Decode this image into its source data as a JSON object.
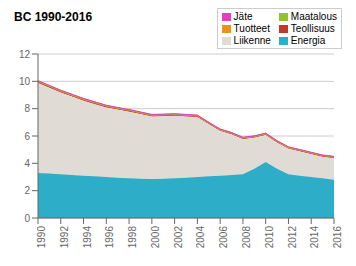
{
  "chart_data": {
    "type": "area",
    "title": "BC 1990-2016",
    "stacked": true,
    "x": [
      1990,
      1991,
      1992,
      1993,
      1994,
      1995,
      1996,
      1997,
      1998,
      1999,
      2000,
      2001,
      2002,
      2003,
      2004,
      2005,
      2006,
      2007,
      2008,
      2009,
      2010,
      2011,
      2012,
      2013,
      2014,
      2015,
      2016
    ],
    "xlim": [
      1990,
      2016
    ],
    "xticks": [
      1990,
      1992,
      1994,
      1996,
      1998,
      2000,
      2002,
      2004,
      2006,
      2008,
      2010,
      2012,
      2014,
      2016
    ],
    "ylim": [
      0,
      12
    ],
    "yticks": [
      0,
      2,
      4,
      6,
      8,
      10,
      12
    ],
    "grid": true,
    "legend": "upper right",
    "series": [
      {
        "name": "Energia",
        "color": "#2dadc8",
        "values": [
          3.3,
          3.25,
          3.2,
          3.15,
          3.1,
          3.05,
          3.0,
          2.95,
          2.9,
          2.88,
          2.85,
          2.87,
          2.9,
          2.95,
          3.0,
          3.05,
          3.1,
          3.15,
          3.2,
          3.6,
          4.1,
          3.6,
          3.2,
          3.1,
          3.0,
          2.9,
          2.8
        ]
      },
      {
        "name": "Liikenne",
        "color": "#e0dbd4",
        "values": [
          6.6,
          6.3,
          6.0,
          5.75,
          5.5,
          5.3,
          5.1,
          5.0,
          4.9,
          4.75,
          4.6,
          4.6,
          4.6,
          4.5,
          4.4,
          3.85,
          3.3,
          3.0,
          2.6,
          2.3,
          2.0,
          1.95,
          1.9,
          1.8,
          1.7,
          1.6,
          1.6
        ]
      },
      {
        "name": "Teollisuus",
        "color": "#c0392b",
        "values": [
          0.05,
          0.05,
          0.05,
          0.05,
          0.05,
          0.05,
          0.05,
          0.05,
          0.05,
          0.04,
          0.04,
          0.04,
          0.04,
          0.04,
          0.04,
          0.03,
          0.03,
          0.03,
          0.03,
          0.03,
          0.03,
          0.03,
          0.03,
          0.03,
          0.03,
          0.03,
          0.03
        ]
      },
      {
        "name": "Tuotteet",
        "color": "#e8941a",
        "values": [
          0.05,
          0.05,
          0.05,
          0.05,
          0.05,
          0.05,
          0.05,
          0.04,
          0.04,
          0.04,
          0.04,
          0.04,
          0.04,
          0.04,
          0.04,
          0.03,
          0.03,
          0.03,
          0.03,
          0.03,
          0.03,
          0.03,
          0.03,
          0.03,
          0.03,
          0.03,
          0.03
        ]
      },
      {
        "name": "Maatalous",
        "color": "#92c03a",
        "values": [
          0.03,
          0.03,
          0.03,
          0.03,
          0.03,
          0.03,
          0.03,
          0.03,
          0.03,
          0.03,
          0.03,
          0.03,
          0.03,
          0.03,
          0.03,
          0.03,
          0.03,
          0.03,
          0.03,
          0.03,
          0.03,
          0.03,
          0.03,
          0.03,
          0.03,
          0.03,
          0.03
        ]
      },
      {
        "name": "Jäte",
        "color": "#e040c0",
        "values": [
          0.02,
          0.02,
          0.02,
          0.02,
          0.02,
          0.02,
          0.02,
          0.02,
          0.02,
          0.02,
          0.02,
          0.02,
          0.02,
          0.02,
          0.02,
          0.02,
          0.02,
          0.02,
          0.02,
          0.02,
          0.02,
          0.02,
          0.02,
          0.02,
          0.02,
          0.02,
          0.02
        ]
      }
    ]
  }
}
